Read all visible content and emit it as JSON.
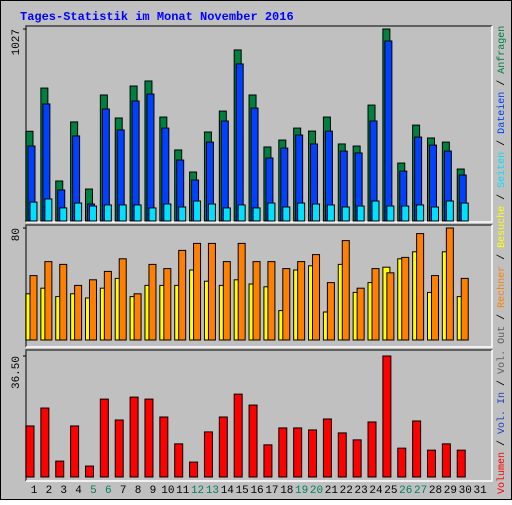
{
  "chart_data": {
    "type": "bar",
    "title": "Tages-Statistik im Monat November 2016",
    "categories": [
      "1",
      "2",
      "3",
      "4",
      "5",
      "6",
      "7",
      "8",
      "9",
      "10",
      "11",
      "12",
      "13",
      "14",
      "15",
      "16",
      "17",
      "18",
      "19",
      "20",
      "21",
      "22",
      "23",
      "24",
      "25",
      "26",
      "27",
      "28",
      "29",
      "30",
      "31"
    ],
    "category_colors": [
      "#000000",
      "#000000",
      "#000000",
      "#000000",
      "#008060",
      "#008060",
      "#000000",
      "#000000",
      "#000000",
      "#000000",
      "#000000",
      "#008060",
      "#008060",
      "#000000",
      "#000000",
      "#000000",
      "#000000",
      "#000000",
      "#008060",
      "#008060",
      "#000000",
      "#000000",
      "#000000",
      "#000000",
      "#000000",
      "#008060",
      "#008060",
      "#000000",
      "#000000",
      "#000000",
      "#000000"
    ],
    "legend_separator": "/",
    "panels": [
      {
        "ylim": [
          0,
          1027
        ],
        "yticks": [
          1027
        ],
        "series": [
          {
            "name": "Anfragen",
            "color": "#008040",
            "values": [
              480,
              711,
              214,
              530,
              171,
              674,
              551,
              722,
              749,
              556,
              380,
              262,
              476,
              588,
              915,
              674,
              396,
              433,
              497,
              481,
              556,
              412,
              401,
              620,
              1027,
              310,
              513,
              444,
              422,
              278,
              null
            ]
          },
          {
            "name": "Dateien",
            "color": "#0040ff",
            "values": [
              401,
              626,
              166,
              455,
              91,
              599,
              487,
              642,
              679,
              497,
              326,
              219,
              422,
              535,
              840,
              604,
              337,
              390,
              460,
              412,
              481,
              374,
              364,
              535,
              963,
              267,
              449,
              406,
              374,
              246,
              null
            ]
          },
          {
            "name": "Seiten",
            "color": "#00e0ff",
            "values": [
              101,
              118,
              70,
              96,
              80,
              86,
              86,
              86,
              70,
              91,
              75,
              107,
              91,
              70,
              86,
              70,
              96,
              75,
              96,
              91,
              86,
              75,
              80,
              107,
              80,
              80,
              86,
              75,
              107,
              96,
              null
            ]
          }
        ]
      },
      {
        "ylim": [
          0,
          80
        ],
        "yticks": [
          80
        ],
        "series": [
          {
            "name": "Besuche",
            "color": "#ffff00",
            "values": [
              33,
              37,
              31,
              33,
              30,
              37,
              44,
              31,
              39,
              39,
              39,
              50,
              42,
              39,
              43,
              40,
              38,
              21,
              50,
              53,
              20,
              54,
              34,
              41,
              52,
              58,
              63,
              34,
              63,
              31,
              null
            ]
          },
          {
            "name": "Rechner",
            "color": "#ff8000",
            "values": [
              46,
              56,
              54,
              39,
              43,
              49,
              58,
              33,
              54,
              51,
              64,
              69,
              69,
              56,
              69,
              56,
              56,
              51,
              56,
              61,
              41,
              71,
              37,
              51,
              48,
              59,
              76,
              46,
              80,
              44,
              null
            ]
          }
        ]
      },
      {
        "ylim": [
          0,
          36.5
        ],
        "yticks": [
          {
            "value": 36.5,
            "label": "36.50"
          }
        ],
        "series": [
          {
            "name": "Vol. Out",
            "color": "#606060",
            "values": [
              null,
              null,
              null,
              null,
              null,
              null,
              null,
              null,
              null,
              null,
              null,
              null,
              null,
              null,
              null,
              null,
              null,
              null,
              null,
              null,
              null,
              null,
              null,
              null,
              null,
              null,
              null,
              null,
              null,
              null,
              null
            ]
          },
          {
            "name": "Vol. In",
            "color": "#2040c0",
            "values": [
              null,
              null,
              null,
              null,
              null,
              null,
              null,
              null,
              null,
              null,
              null,
              null,
              null,
              null,
              null,
              null,
              null,
              null,
              null,
              null,
              null,
              null,
              null,
              null,
              null,
              null,
              null,
              null,
              null,
              null,
              null
            ]
          },
          {
            "name": "Volumen",
            "color": "#ff0000",
            "values": [
              15.4,
              20.8,
              4.8,
              15.4,
              3.3,
              23.5,
              17.2,
              24.1,
              23.5,
              18.1,
              10.0,
              4.5,
              13.6,
              18.1,
              25.0,
              21.7,
              9.7,
              14.8,
              14.8,
              14.2,
              17.5,
              13.3,
              11.2,
              16.6,
              36.5,
              8.7,
              16.9,
              8.1,
              10.0,
              8.1,
              null
            ]
          }
        ]
      }
    ]
  }
}
